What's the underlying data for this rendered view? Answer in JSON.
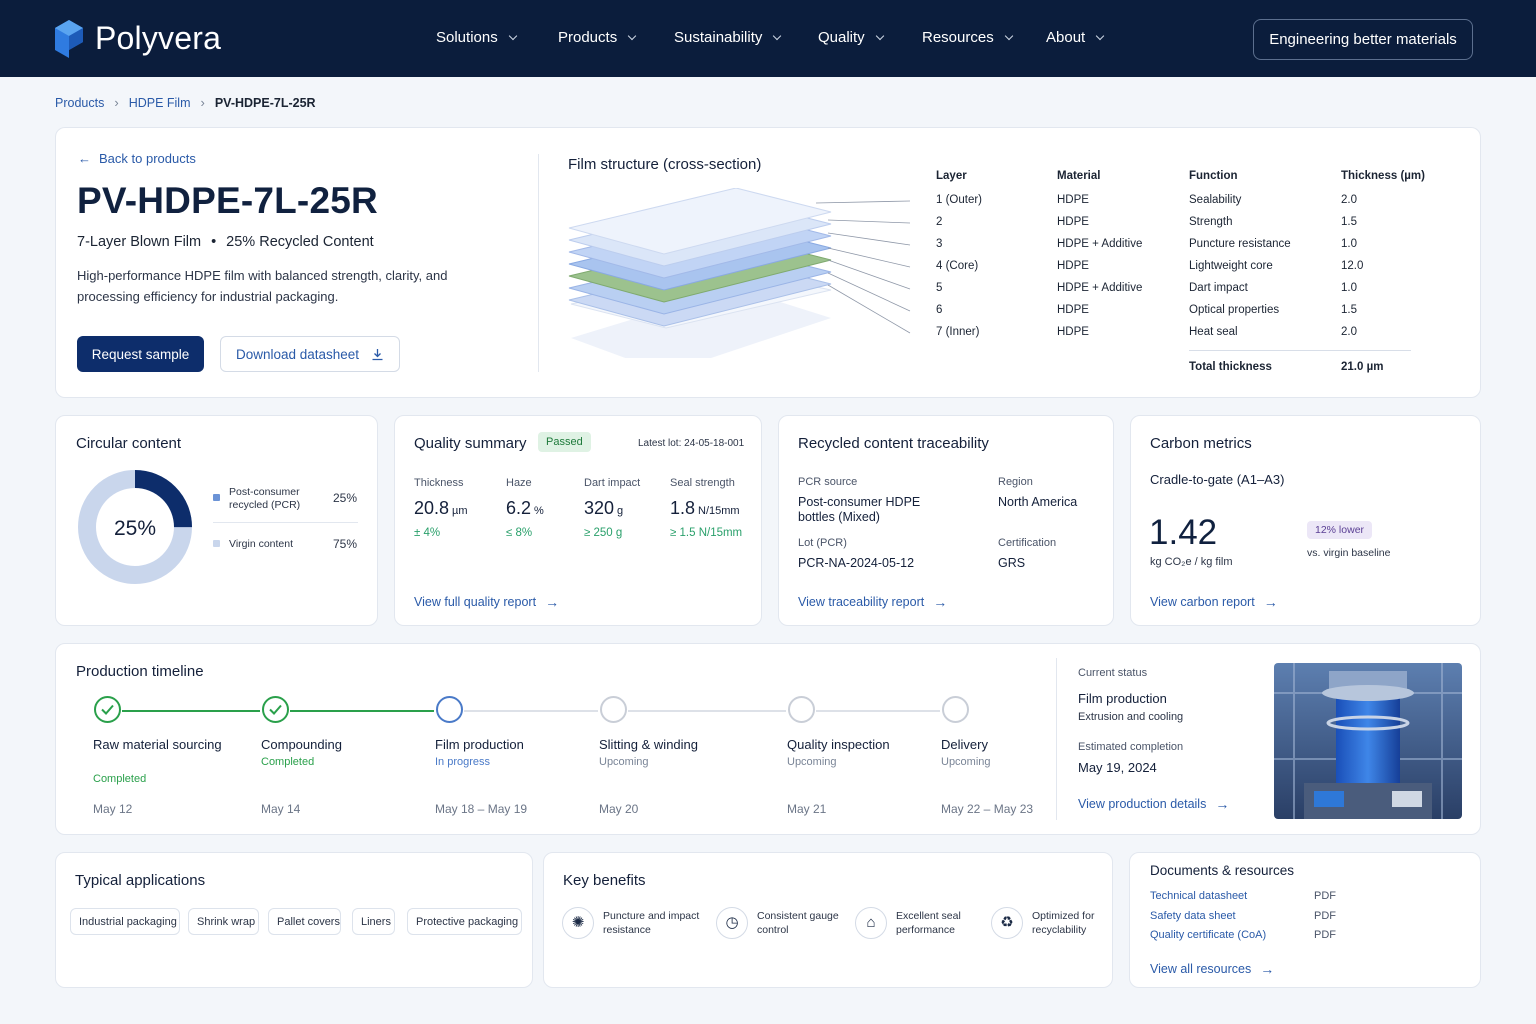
{
  "brand": {
    "name": "Polyvera"
  },
  "nav": {
    "items": [
      "Solutions",
      "Products",
      "Sustainability",
      "Quality",
      "Resources",
      "About"
    ],
    "cta": "Engineering better materials"
  },
  "breadcrumb": {
    "items": [
      "Products",
      "HDPE Film"
    ],
    "current": "PV-HDPE-7L-25R"
  },
  "product": {
    "back_label": "Back to products",
    "title": "PV-HDPE-7L-25R",
    "subtitle_a": "7-Layer Blown Film",
    "subtitle_sep": "•",
    "subtitle_b": "25% Recycled Content",
    "description": "High-performance HDPE film with balanced strength, clarity, and processing efficiency for industrial packaging.",
    "request_label": "Request sample",
    "download_label": "Download datasheet"
  },
  "film_structure": {
    "title": "Film structure (cross-section)",
    "headers": {
      "layer": "Layer",
      "material": "Material",
      "function": "Function",
      "thickness": "Thickness (µm)"
    },
    "layers": [
      {
        "layer": "1 (Outer)",
        "material": "HDPE",
        "function": "Sealability",
        "thickness": "2.0"
      },
      {
        "layer": "2",
        "material": "HDPE",
        "function": "Strength",
        "thickness": "1.5"
      },
      {
        "layer": "3",
        "material": "HDPE + Additive",
        "function": "Puncture resistance",
        "thickness": "1.0"
      },
      {
        "layer": "4 (Core)",
        "material": "HDPE",
        "function": "Lightweight core",
        "thickness": "12.0"
      },
      {
        "layer": "5",
        "material": "HDPE + Additive",
        "function": "Dart impact",
        "thickness": "1.0"
      },
      {
        "layer": "6",
        "material": "HDPE",
        "function": "Optical properties",
        "thickness": "1.5"
      },
      {
        "layer": "7 (Inner)",
        "material": "HDPE",
        "function": "Heat seal",
        "thickness": "2.0"
      }
    ],
    "total_label": "Total thickness",
    "total_value": "21.0 µm"
  },
  "circular": {
    "title": "Circular content",
    "center_label": "25%",
    "pcr_fraction": 0.25,
    "pcr_label": "Post-consumer recycled (PCR)",
    "pcr_value": "25%",
    "virgin_label": "Virgin content",
    "virgin_value": "75%",
    "colors": {
      "pcr": "#0d2d6b",
      "virgin": "#c9d6ec"
    }
  },
  "quality": {
    "title": "Quality summary",
    "badge": "Passed",
    "lot": "Latest lot: 24-05-18-001",
    "metrics": [
      {
        "label": "Thickness",
        "value": "20.8",
        "unit": "µm",
        "tol": "± 4%"
      },
      {
        "label": "Haze",
        "value": "6.2",
        "unit": "%",
        "tol": "≤ 8%"
      },
      {
        "label": "Dart impact",
        "value": "320",
        "unit": "g",
        "tol": "≥ 250 g"
      },
      {
        "label": "Seal strength",
        "value": "1.8",
        "unit": "N/15mm",
        "tol": "≥ 1.5 N/15mm"
      }
    ],
    "link": "View full quality report"
  },
  "traceability": {
    "title": "Recycled content traceability",
    "pcr_source_label": "PCR source",
    "pcr_source_value": "Post-consumer HDPE bottles (Mixed)",
    "region_label": "Region",
    "region_value": "North America",
    "lot_label": "Lot (PCR)",
    "lot_value": "PCR-NA-2024-05-12",
    "cert_label": "Certification",
    "cert_value": "GRS",
    "link": "View traceability report"
  },
  "carbon": {
    "title": "Carbon metrics",
    "scope": "Cradle-to-gate (A1–A3)",
    "value": "1.42",
    "unit": "kg CO₂e / kg film",
    "badge": "12% lower",
    "compare": "vs. virgin baseline",
    "link": "View carbon report"
  },
  "timeline": {
    "title": "Production timeline",
    "steps": [
      {
        "name": "Raw material sourcing",
        "status": "Completed",
        "state": "done",
        "date": "May 12"
      },
      {
        "name": "Compounding",
        "status": "Completed",
        "state": "done",
        "date": "May 14"
      },
      {
        "name": "Film production",
        "status": "In progress",
        "state": "active",
        "date": "May 18 – May 19"
      },
      {
        "name": "Slitting & winding",
        "status": "Upcoming",
        "state": "upcoming",
        "date": "May 20"
      },
      {
        "name": "Quality inspection",
        "status": "Upcoming",
        "state": "upcoming",
        "date": "May 21"
      },
      {
        "name": "Delivery",
        "status": "Upcoming",
        "state": "upcoming",
        "date": "May 22 – May 23"
      }
    ],
    "current_label": "Current status",
    "current_value": "Film production",
    "current_detail": "Extrusion and cooling",
    "eta_label": "Estimated completion",
    "eta_value": "May 19, 2024",
    "link": "View production details"
  },
  "applications": {
    "title": "Typical applications",
    "tags": [
      "Industrial packaging",
      "Shrink wrap",
      "Pallet covers",
      "Liners",
      "Protective packaging"
    ]
  },
  "benefits": {
    "title": "Key benefits",
    "items": [
      {
        "icon": "puncture-icon",
        "label_1": "Puncture and impact",
        "label_2": "resistance"
      },
      {
        "icon": "gauge-icon",
        "label_1": "Consistent gauge",
        "label_2": "control"
      },
      {
        "icon": "seal-icon",
        "label_1": "Excellent seal",
        "label_2": "performance"
      },
      {
        "icon": "recycle-icon",
        "label_1": "Optimized for",
        "label_2": "recyclability"
      }
    ]
  },
  "documents": {
    "title": "Documents & resources",
    "items": [
      {
        "name": "Technical datasheet",
        "type": "PDF"
      },
      {
        "name": "Safety data sheet",
        "type": "PDF"
      },
      {
        "name": "Quality certificate (CoA)",
        "type": "PDF"
      }
    ],
    "link": "View all resources"
  }
}
